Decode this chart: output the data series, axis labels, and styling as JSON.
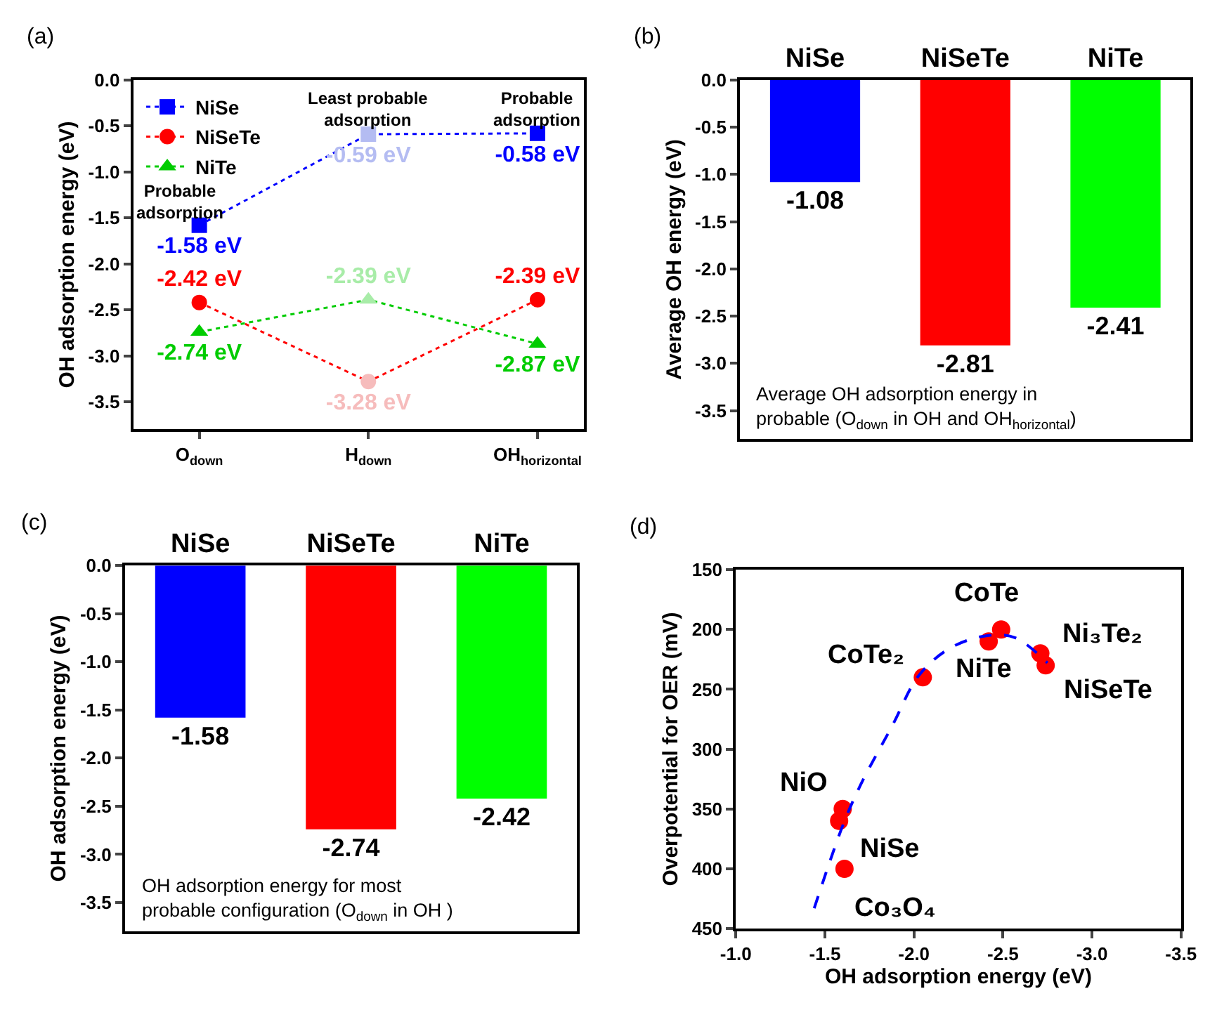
{
  "chart_data": [
    {
      "type": "line",
      "title": "(a)",
      "ylabel": "OH adsorption energy (eV)",
      "categories": [
        "O$_{down}$",
        "H$_{down}$",
        "OH$_{horizontal}$"
      ],
      "series": [
        {
          "name": "NiSe",
          "color": "#0000ff",
          "colors": [
            "#0000ff",
            "#b4bcf2",
            "#0000ff"
          ],
          "marker": "square",
          "values": [
            -1.58,
            -0.59,
            -0.58
          ],
          "value_labels": [
            "-1.58 eV",
            "-0.59 eV",
            "-0.58 eV"
          ]
        },
        {
          "name": "NiSeTe",
          "color": "#ff0000",
          "colors": [
            "#ff0000",
            "#f6bcbc",
            "#ff0000"
          ],
          "marker": "circle",
          "values": [
            -2.42,
            -3.28,
            -2.39
          ],
          "value_labels": [
            "-2.42 eV",
            "-3.28 eV",
            "-2.39 eV"
          ]
        },
        {
          "name": "NiTe",
          "color": "#00cc00",
          "colors": [
            "#00cc00",
            "#a8eca8",
            "#00cc00"
          ],
          "marker": "triangle",
          "values": [
            -2.74,
            -2.39,
            -2.87
          ],
          "value_labels": [
            "-2.74 eV",
            "-2.39 eV",
            "-2.87 eV"
          ]
        }
      ],
      "annotations": [
        "Probable adsorption",
        "Least probable adsorption",
        "Probable adsorption"
      ],
      "line_style": "dotted",
      "legend": "top left",
      "ylim": [
        -3.8,
        0
      ],
      "yticks": [
        {
          "value": 0,
          "label": "0.0"
        },
        -0.5,
        {
          "value": -1,
          "label": "-1.0"
        },
        -1.5,
        {
          "value": -2,
          "label": "-2.0"
        },
        -2.5,
        {
          "value": -3,
          "label": "-3.0"
        },
        -3.5
      ]
    },
    {
      "type": "bar",
      "title": "(b)",
      "ylabel": "Average OH energy (eV)",
      "categories": [
        "NiSe",
        "NiSeTe",
        "NiTe"
      ],
      "values": [
        -1.08,
        -2.81,
        -2.41
      ],
      "colors": [
        "#0000ff",
        "#ff0000",
        "#00ff00"
      ],
      "data_labels": true,
      "annotations": [
        "Average OH adsorption energy in probable (O$_{down}$ in OH and OH$_{horizontal}$)"
      ],
      "ylim": [
        -3.8,
        0
      ],
      "yticks": [
        {
          "value": 0,
          "label": "0.0"
        },
        -0.5,
        {
          "value": -1,
          "label": "-1.0"
        },
        -1.5,
        {
          "value": -2,
          "label": "-2.0"
        },
        -2.5,
        {
          "value": -3,
          "label": "-3.0"
        },
        -3.5
      ]
    },
    {
      "type": "bar",
      "title": "(c)",
      "ylabel": "OH adsorption energy (eV)",
      "categories": [
        "NiSe",
        "NiSeTe",
        "NiTe"
      ],
      "values": [
        -1.58,
        -2.74,
        -2.42
      ],
      "colors": [
        "#0000ff",
        "#ff0000",
        "#00ff00"
      ],
      "data_labels": true,
      "annotations": [
        "OH adsorption energy for most probable configuration (O$_{down}$ in OH )"
      ],
      "ylim": [
        -3.8,
        0
      ],
      "yticks": [
        {
          "value": 0,
          "label": "0.0"
        },
        -0.5,
        {
          "value": -1,
          "label": "-1.0"
        },
        -1.5,
        {
          "value": -2,
          "label": "-2.0"
        },
        -2.5,
        {
          "value": -3,
          "label": "-3.0"
        },
        -3.5
      ]
    },
    {
      "type": "scatter",
      "title": "(d)",
      "xlabel": "OH adsorption energy (eV)",
      "ylabel": "Overpotential for OER (mV)",
      "series": [
        {
          "type": "scatter",
          "color": "#ff0000",
          "marker": "circle",
          "x": [
            -1.6,
            -1.58,
            -1.61,
            -2.05,
            -2.42,
            -2.49,
            -2.71,
            -2.74
          ],
          "values": [
            350,
            360,
            400,
            240,
            210,
            200,
            220,
            230
          ]
        },
        {
          "type": "line",
          "color": "#0000ff",
          "marker": "none",
          "line_style": "dashed",
          "x": [
            -1.44,
            -1.6,
            -1.7,
            -1.88,
            -2.03,
            -2.21,
            -2.42,
            -2.57,
            -2.75
          ],
          "values": [
            433,
            364,
            330,
            280,
            238,
            215,
            205,
            207,
            228
          ]
        }
      ],
      "annotations": [
        {
          "text": "NiO",
          "x": -1.6,
          "y": 350
        },
        {
          "text": "NiSe",
          "x": -1.58,
          "y": 360
        },
        {
          "text": "Co₃O₄",
          "x": -1.61,
          "y": 400
        },
        {
          "text": "CoTe₂",
          "x": -2.05,
          "y": 240
        },
        {
          "text": "NiTe",
          "x": -2.42,
          "y": 210
        },
        {
          "text": "CoTe",
          "x": -2.49,
          "y": 200
        },
        {
          "text": "Ni₃Te₂",
          "x": -2.71,
          "y": 220
        },
        {
          "text": "NiSeTe",
          "x": -2.74,
          "y": 230
        }
      ],
      "xlim": [
        -1.0,
        -3.5
      ],
      "ylim": [
        450,
        150
      ],
      "xticks": [
        {
          "value": -1,
          "label": "-1.0"
        },
        -1.5,
        {
          "value": -2,
          "label": "-2.0"
        },
        -2.5,
        {
          "value": -3,
          "label": "-3.0"
        },
        -3.5
      ],
      "yticks": [
        150,
        200,
        250,
        300,
        350,
        400,
        450
      ]
    }
  ]
}
